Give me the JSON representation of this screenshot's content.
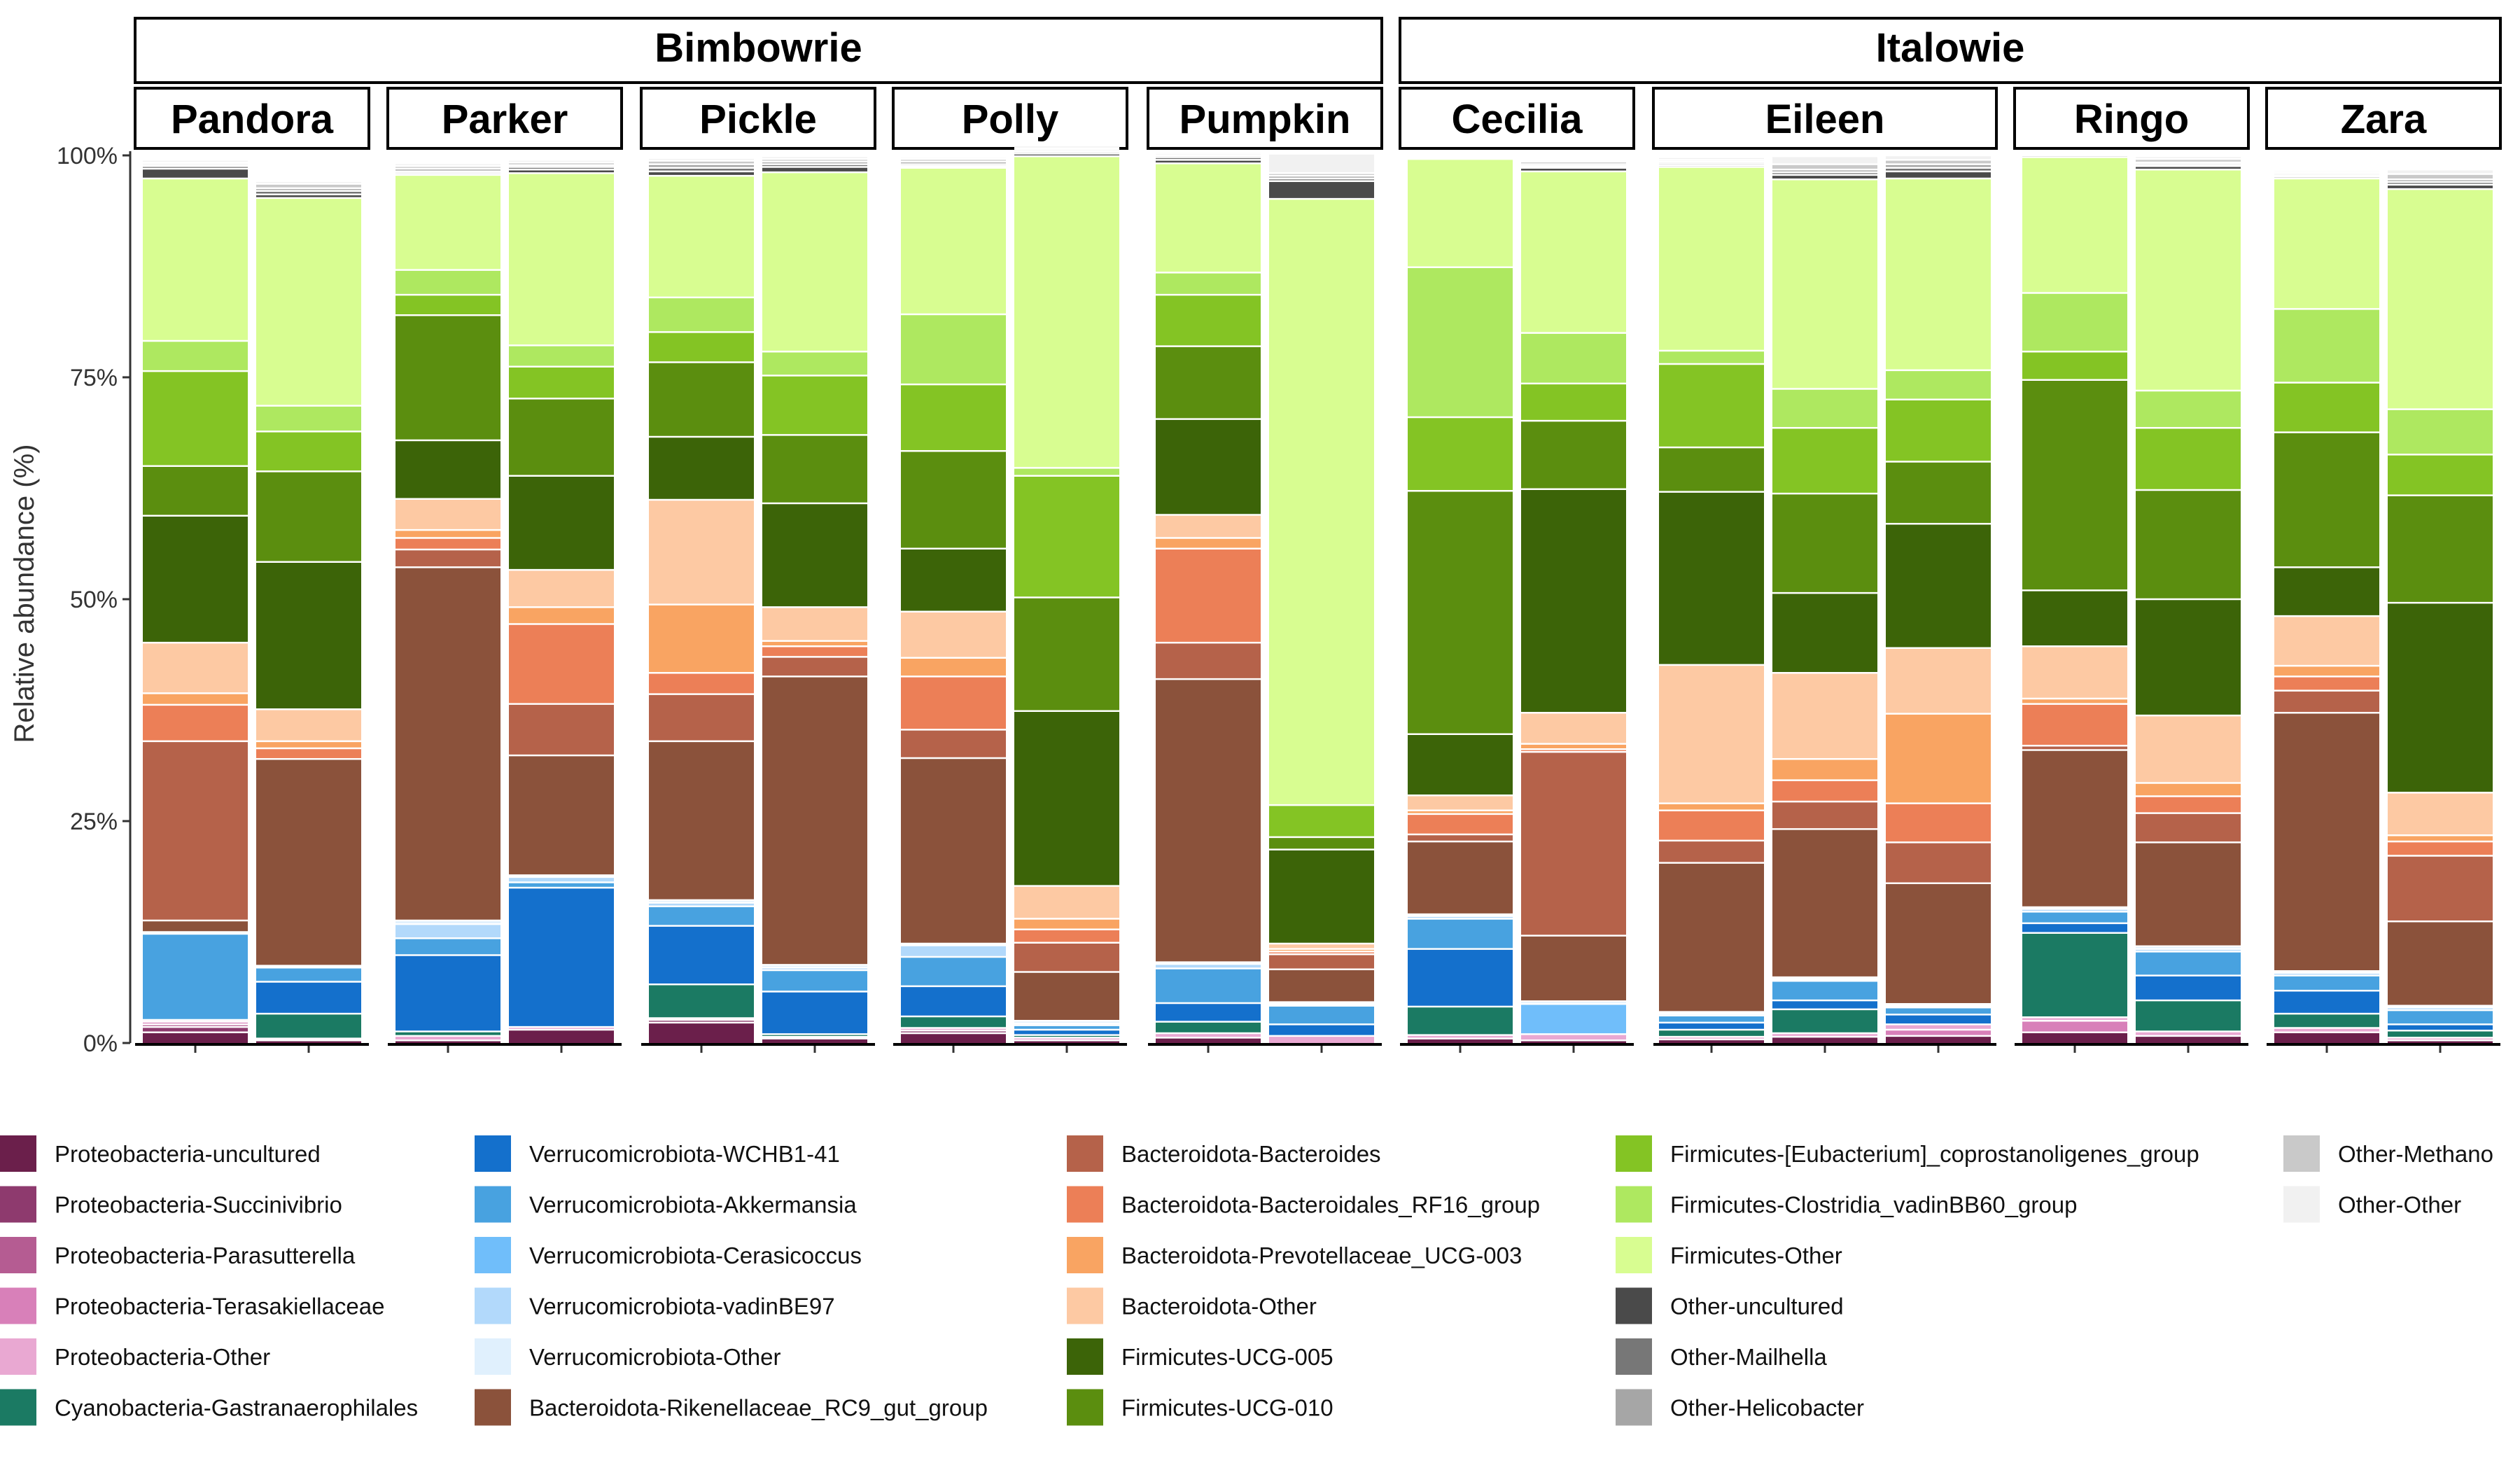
{
  "chart_data": {
    "type": "bar",
    "stacked": true,
    "ylabel": "Relative abundance (%)",
    "ylim": [
      0,
      100
    ],
    "yticks": [
      "0%",
      "25%",
      "50%",
      "75%",
      "100%"
    ],
    "legend_position": "bottom",
    "groups": [
      {
        "name": "Bimbowrie",
        "facets": [
          "Pandora",
          "Parker",
          "Pickle",
          "Polly",
          "Pumpkin"
        ]
      },
      {
        "name": "Italowie",
        "facets": [
          "Cecilia",
          "Eileen",
          "Ringo",
          "Zara"
        ]
      }
    ],
    "taxa": [
      {
        "name": "Proteobacteria-uncultured",
        "color": "#6b1f4b"
      },
      {
        "name": "Proteobacteria-Succinivibrio",
        "color": "#8e3a6e"
      },
      {
        "name": "Proteobacteria-Parasutterella",
        "color": "#b55c92"
      },
      {
        "name": "Proteobacteria-Terasakiellaceae",
        "color": "#d880b9"
      },
      {
        "name": "Proteobacteria-Other",
        "color": "#e9a8d2"
      },
      {
        "name": "Cyanobacteria-Gastranaerophilales",
        "color": "#1b7a63"
      },
      {
        "name": "Verrucomicrobiota-WCHB1-41",
        "color": "#1470cc"
      },
      {
        "name": "Verrucomicrobiota-Akkermansia",
        "color": "#48a2e0"
      },
      {
        "name": "Verrucomicrobiota-Cerasicoccus",
        "color": "#70befa"
      },
      {
        "name": "Verrucomicrobiota-vadinBE97",
        "color": "#b2d9fb"
      },
      {
        "name": "Verrucomicrobiota-Other",
        "color": "#e0f0fd"
      },
      {
        "name": "Bacteroidota-Rikenellaceae_RC9_gut_group",
        "color": "#8b523b"
      },
      {
        "name": "Bacteroidota-Bacteroides",
        "color": "#b5624a"
      },
      {
        "name": "Bacteroidota-Bacteroidales_RF16_group",
        "color": "#ec7f57"
      },
      {
        "name": "Bacteroidota-Prevotellaceae_UCG-003",
        "color": "#f9a462"
      },
      {
        "name": "Bacteroidota-Other",
        "color": "#fdc9a3"
      },
      {
        "name": "Firmicutes-UCG-005",
        "color": "#3c6408"
      },
      {
        "name": "Firmicutes-UCG-010",
        "color": "#5b8e0f"
      },
      {
        "name": "Firmicutes-[Eubacterium]_coprostanoligenes_group",
        "color": "#84c424"
      },
      {
        "name": "Firmicutes-Clostridia_vadinBB60_group",
        "color": "#aee860"
      },
      {
        "name": "Firmicutes-Other",
        "color": "#d8fd91"
      },
      {
        "name": "Other-uncultured",
        "color": "#4a4a4a"
      },
      {
        "name": "Other-Mailhella",
        "color": "#777777"
      },
      {
        "name": "Other-Helicobacter",
        "color": "#a6a6a6"
      },
      {
        "name": "Other-Methano",
        "color": "#c9c9c9"
      },
      {
        "name": "Other-Other",
        "color": "#f1f1f1"
      }
    ],
    "samples": [
      {
        "facet": "Pandora",
        "values": [
          1.2,
          0.6,
          0.3,
          0.3,
          0.2,
          0,
          0,
          9.7,
          0,
          0.2,
          0,
          1.3,
          20.2,
          4.1,
          1.3,
          5.7,
          14.3,
          5.6,
          10.7,
          3.4,
          18.3,
          1.1,
          0.3,
          0.2,
          0.2,
          0.3
        ]
      },
      {
        "facet": "Pandora",
        "values": [
          0.3,
          0,
          0,
          0,
          0.2,
          2.8,
          3.6,
          1.6,
          0,
          0,
          0.2,
          23.3,
          0,
          1.2,
          0.8,
          3.6,
          16.6,
          10.2,
          4.5,
          2.9,
          23.4,
          0.4,
          0.4,
          0.3,
          0.5,
          0.3
        ]
      },
      {
        "facet": "Parker",
        "values": [
          0.3,
          0,
          0,
          0,
          0.5,
          0.5,
          8.6,
          1.9,
          0,
          1.6,
          0.4,
          39.8,
          2.0,
          1.3,
          0.9,
          3.5,
          6.6,
          14.1,
          2.3,
          2.8,
          10.7,
          0.2,
          0.2,
          0.3,
          0.3,
          0.3
        ]
      },
      {
        "facet": "Parker",
        "values": [
          1.5,
          0,
          0,
          0,
          0.3,
          0,
          15.7,
          0.6,
          0,
          0.6,
          0.2,
          13.5,
          5.8,
          9.0,
          1.9,
          4.2,
          10.6,
          8.7,
          3.6,
          2.4,
          19.4,
          0.4,
          0.3,
          0.2,
          0.3,
          0.3
        ]
      },
      {
        "facet": "Pickle",
        "values": [
          2.3,
          0.3,
          0,
          0,
          0.2,
          3.8,
          6.6,
          2.2,
          0,
          0.4,
          0.3,
          17.9,
          5.3,
          2.4,
          7.7,
          11.8,
          7.1,
          8.4,
          3.4,
          3.9,
          13.7,
          0.5,
          0.4,
          0.4,
          0.4,
          0.3
        ]
      },
      {
        "facet": "Pickle",
        "values": [
          0.5,
          0,
          0,
          0,
          0.2,
          0.3,
          4.8,
          2.4,
          0,
          0.3,
          0.3,
          32.5,
          2.2,
          1.2,
          0.6,
          3.8,
          11.7,
          7.7,
          6.7,
          2.7,
          20.2,
          0.6,
          0.3,
          0.3,
          0.3,
          0.3
        ]
      },
      {
        "facet": "Polly",
        "values": [
          1.1,
          0.3,
          0,
          0,
          0.3,
          1.3,
          3.4,
          3.3,
          0,
          1.3,
          0.2,
          20.9,
          3.2,
          6.0,
          2.1,
          5.2,
          7.1,
          11.0,
          7.5,
          7.9,
          16.5,
          0.2,
          0.2,
          0.3,
          0.3,
          0.2
        ]
      },
      {
        "facet": "Polly",
        "values": [
          0.3,
          0,
          0,
          0,
          0.3,
          0.3,
          0.6,
          0.5,
          0,
          0.2,
          0.3,
          5.5,
          3.3,
          1.5,
          1.2,
          3.7,
          19.7,
          12.8,
          13.7,
          0.9,
          35.1,
          0.3,
          0.2,
          0.2,
          0.2,
          0.3
        ]
      },
      {
        "facet": "Pumpkin",
        "values": [
          0.6,
          0,
          0,
          0,
          0.5,
          1.3,
          2.1,
          3.9,
          0,
          0.5,
          0.2,
          31.9,
          4.1,
          10.6,
          1.2,
          2.6,
          10.8,
          8.2,
          5.8,
          2.5,
          12.3,
          0.4,
          0.3,
          0.2,
          0.2,
          0.2
        ]
      },
      {
        "facet": "Pumpkin",
        "values": [
          0,
          0,
          0,
          0,
          0.8,
          0,
          1.3,
          2.1,
          0,
          0.2,
          0.2,
          3.7,
          1.7,
          0.3,
          0.3,
          0.6,
          10.6,
          1.4,
          3.6,
          0,
          68.3,
          2.0,
          0.3,
          0.3,
          0.3,
          2.2
        ]
      },
      {
        "facet": "Cecilia",
        "values": [
          0.5,
          0,
          0,
          0,
          0.4,
          3.2,
          6.5,
          3.4,
          0,
          0.3,
          0.2,
          8.2,
          0.8,
          2.3,
          0.4,
          1.7,
          6.9,
          27.4,
          8.3,
          16.9,
          12.2,
          0,
          0,
          0,
          0,
          0
        ]
      },
      {
        "facet": "Cecilia",
        "values": [
          0.3,
          0,
          0,
          0,
          0.7,
          0,
          0,
          0,
          3.4,
          0,
          0.3,
          7.4,
          20.7,
          0.3,
          0.6,
          3.5,
          25.2,
          7.7,
          4.2,
          5.7,
          18.2,
          0.4,
          0.2,
          0.2,
          0.3,
          0.2
        ]
      },
      {
        "facet": "Eileen",
        "values": [
          0.4,
          0,
          0,
          0,
          0.3,
          0.8,
          0.8,
          0.8,
          0,
          0.2,
          0.2,
          16.8,
          2.5,
          3.4,
          0.8,
          15.6,
          19.5,
          5.0,
          9.4,
          1.5,
          20.7,
          0.2,
          0.2,
          0.2,
          0.2,
          0.3
        ]
      },
      {
        "facet": "Eileen",
        "values": [
          0.7,
          0,
          0,
          0,
          0.4,
          2.7,
          1.0,
          2.2,
          0,
          0.2,
          0.2,
          16.7,
          3.1,
          2.4,
          2.4,
          9.7,
          9.0,
          11.2,
          7.4,
          4.4,
          23.6,
          0.5,
          0.3,
          0.3,
          0.6,
          0.9
        ]
      },
      {
        "facet": "Eileen",
        "values": [
          0.8,
          0,
          0,
          0.7,
          0.6,
          0,
          1.1,
          0.8,
          0,
          0.2,
          0.2,
          13.6,
          4.6,
          4.4,
          10.1,
          7.4,
          14.0,
          7.0,
          7.0,
          3.3,
          21.6,
          0.8,
          0.4,
          0.4,
          0.5,
          0.5
        ]
      },
      {
        "facet": "Ringo",
        "values": [
          1.2,
          0,
          0,
          1.3,
          0.4,
          9.5,
          1.1,
          1.3,
          0,
          0.3,
          0.2,
          17.7,
          0.5,
          4.7,
          0.6,
          5.9,
          6.3,
          23.7,
          3.2,
          6.6,
          15.3,
          0.2,
          0.1,
          0.2,
          0.1,
          0.1
        ]
      },
      {
        "facet": "Ringo",
        "values": [
          0.8,
          0,
          0,
          0,
          0.5,
          3.5,
          2.8,
          2.7,
          0,
          0.3,
          0.3,
          11.7,
          3.3,
          1.9,
          1.5,
          7.6,
          13.1,
          12.3,
          7.0,
          4.2,
          24.9,
          0.4,
          0.2,
          0.2,
          0.4,
          0.3
        ]
      },
      {
        "facet": "Zara",
        "values": [
          1.2,
          0,
          0,
          0,
          0.5,
          1.6,
          2.6,
          1.7,
          0,
          0.3,
          0.2,
          29.1,
          2.5,
          1.6,
          1.2,
          5.6,
          5.5,
          15.2,
          5.6,
          8.3,
          14.7,
          0.2,
          0.1,
          0.2,
          0.2,
          0.2
        ]
      },
      {
        "facet": "Zara",
        "values": [
          0.3,
          0,
          0,
          0,
          0.3,
          0.8,
          0.7,
          1.6,
          0,
          0.3,
          0.2,
          9.5,
          7.4,
          1.6,
          0.7,
          4.8,
          21.4,
          12.1,
          4.6,
          5.1,
          24.8,
          0.5,
          0.3,
          0.3,
          0.6,
          0.5
        ]
      }
    ]
  }
}
